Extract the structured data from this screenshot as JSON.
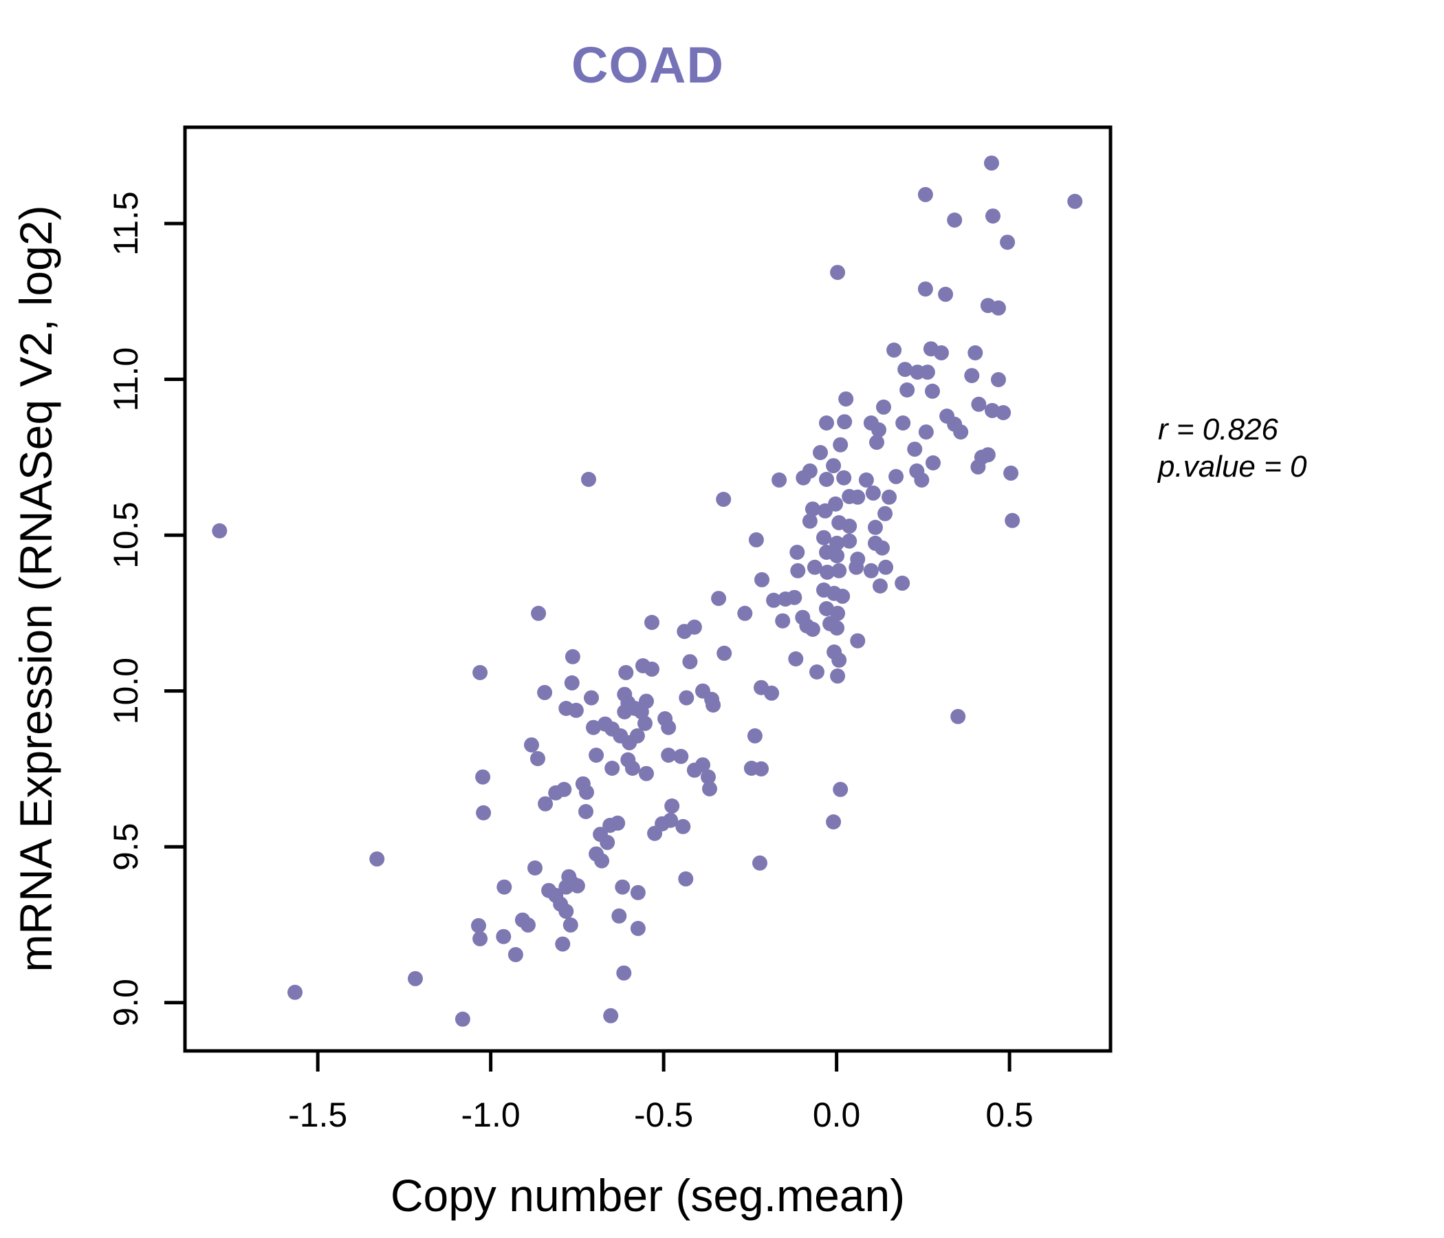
{
  "chart_data": {
    "type": "scatter",
    "title": "COAD",
    "xlabel": "Copy number (seg.mean)",
    "ylabel": "mRNA Expression (RNASeq V2, log2)",
    "xlim": [
      -1.884,
      0.792
    ],
    "ylim": [
      8.845,
      11.809
    ],
    "grid": false,
    "legend": "none",
    "point_color": "#7D78B1",
    "title_color": "#7672B8",
    "axis_color": "#000000",
    "x_tick_values": [
      -1.5,
      -1.0,
      -0.5,
      0.0,
      0.5
    ],
    "x_tick_labels": [
      "-1.5",
      "-1.0",
      "-0.5",
      "0.0",
      "0.5"
    ],
    "y_tick_values": [
      9.0,
      9.5,
      10.0,
      10.5,
      11.0,
      11.5
    ],
    "y_tick_labels": [
      "9.0",
      "9.5",
      "10.0",
      "10.5",
      "11.0",
      "11.5"
    ],
    "annotation": {
      "line1": "r = 0.826",
      "line2": "p.value = 0"
    },
    "points": [
      [
        0.448,
        11.694
      ],
      [
        0.257,
        11.593
      ],
      [
        0.689,
        11.571
      ],
      [
        0.341,
        11.511
      ],
      [
        0.452,
        11.524
      ],
      [
        0.494,
        11.44
      ],
      [
        0.003,
        11.343
      ],
      [
        0.257,
        11.29
      ],
      [
        0.315,
        11.273
      ],
      [
        0.438,
        11.237
      ],
      [
        0.468,
        11.229
      ],
      [
        0.166,
        11.094
      ],
      [
        0.273,
        11.098
      ],
      [
        0.303,
        11.085
      ],
      [
        0.401,
        11.085
      ],
      [
        0.198,
        11.032
      ],
      [
        0.234,
        11.023
      ],
      [
        0.263,
        11.023
      ],
      [
        0.391,
        11.012
      ],
      [
        0.468,
        10.999
      ],
      [
        0.204,
        10.966
      ],
      [
        0.277,
        10.962
      ],
      [
        0.027,
        10.937
      ],
      [
        0.411,
        10.92
      ],
      [
        0.45,
        10.9
      ],
      [
        0.482,
        10.893
      ],
      [
        0.136,
        10.911
      ],
      [
        -0.029,
        10.86
      ],
      [
        0.023,
        10.864
      ],
      [
        0.1,
        10.86
      ],
      [
        0.122,
        10.838
      ],
      [
        0.192,
        10.86
      ],
      [
        0.319,
        10.882
      ],
      [
        0.341,
        10.856
      ],
      [
        0.259,
        10.831
      ],
      [
        0.359,
        10.831
      ],
      [
        -0.047,
        10.765
      ],
      [
        0.011,
        10.79
      ],
      [
        0.116,
        10.798
      ],
      [
        0.226,
        10.776
      ],
      [
        0.279,
        10.732
      ],
      [
        0.42,
        10.75
      ],
      [
        0.409,
        10.719
      ],
      [
        0.438,
        10.758
      ],
      [
        0.504,
        10.699
      ],
      [
        -0.077,
        10.706
      ],
      [
        -0.009,
        10.723
      ],
      [
        -0.029,
        10.679
      ],
      [
        0.021,
        10.684
      ],
      [
        0.086,
        10.677
      ],
      [
        0.172,
        10.688
      ],
      [
        0.232,
        10.706
      ],
      [
        0.246,
        10.677
      ],
      [
        0.106,
        10.635
      ],
      [
        0.037,
        10.624
      ],
      [
        0.061,
        10.622
      ],
      [
        0.152,
        10.622
      ],
      [
        -0.003,
        10.6
      ],
      [
        -0.069,
        10.584
      ],
      [
        -0.033,
        10.578
      ],
      [
        0.14,
        10.569
      ],
      [
        0.508,
        10.547
      ],
      [
        0.007,
        10.54
      ],
      [
        0.037,
        10.529
      ],
      [
        0.112,
        10.525
      ],
      [
        -0.077,
        10.545
      ],
      [
        -0.037,
        10.492
      ],
      [
        0.001,
        10.474
      ],
      [
        0.037,
        10.481
      ],
      [
        0.112,
        10.474
      ],
      [
        0.132,
        10.459
      ],
      [
        -0.029,
        10.445
      ],
      [
        0.001,
        10.434
      ],
      [
        0.061,
        10.423
      ],
      [
        -0.063,
        10.397
      ],
      [
        -0.027,
        10.381
      ],
      [
        0.007,
        10.386
      ],
      [
        0.057,
        10.397
      ],
      [
        0.1,
        10.386
      ],
      [
        0.142,
        10.397
      ],
      [
        0.126,
        10.337
      ],
      [
        0.19,
        10.346
      ],
      [
        -0.037,
        10.324
      ],
      [
        -0.007,
        10.313
      ],
      [
        0.017,
        10.304
      ],
      [
        -0.029,
        10.264
      ],
      [
        0.003,
        10.249
      ],
      [
        -0.019,
        10.216
      ],
      [
        -0.069,
        10.198
      ],
      [
        0.001,
        10.202
      ],
      [
        0.061,
        10.161
      ],
      [
        -0.007,
        10.125
      ],
      [
        0.007,
        10.099
      ],
      [
        -0.057,
        10.061
      ],
      [
        0.003,
        10.048
      ],
      [
        0.351,
        9.918
      ],
      [
        0.011,
        9.684
      ],
      [
        -0.009,
        9.58
      ],
      [
        -0.717,
        10.679
      ],
      [
        -0.327,
        10.615
      ],
      [
        -0.166,
        10.677
      ],
      [
        -0.096,
        10.684
      ],
      [
        -0.232,
        10.485
      ],
      [
        -0.114,
        10.445
      ],
      [
        -0.112,
        10.386
      ],
      [
        -0.216,
        10.357
      ],
      [
        -0.341,
        10.297
      ],
      [
        -0.265,
        10.249
      ],
      [
        -0.182,
        10.291
      ],
      [
        -0.148,
        10.295
      ],
      [
        -0.122,
        10.3
      ],
      [
        -0.156,
        10.225
      ],
      [
        -0.098,
        10.236
      ],
      [
        -0.086,
        10.209
      ],
      [
        -0.862,
        10.249
      ],
      [
        -0.534,
        10.22
      ],
      [
        -0.44,
        10.191
      ],
      [
        -0.411,
        10.205
      ],
      [
        -0.763,
        10.11
      ],
      [
        -0.325,
        10.121
      ],
      [
        -0.424,
        10.094
      ],
      [
        -0.118,
        10.103
      ],
      [
        -0.609,
        10.059
      ],
      [
        -0.56,
        10.081
      ],
      [
        -0.534,
        10.07
      ],
      [
        -0.765,
        10.026
      ],
      [
        -0.844,
        9.995
      ],
      [
        -0.709,
        9.978
      ],
      [
        -0.613,
        9.989
      ],
      [
        -0.603,
        9.962
      ],
      [
        -0.55,
        9.967
      ],
      [
        -0.434,
        9.978
      ],
      [
        -0.387,
        10.0
      ],
      [
        -0.361,
        9.973
      ],
      [
        -0.357,
        9.955
      ],
      [
        -0.218,
        10.011
      ],
      [
        -0.188,
        9.993
      ],
      [
        -0.782,
        9.944
      ],
      [
        -0.753,
        9.938
      ],
      [
        -0.669,
        9.894
      ],
      [
        -0.649,
        9.878
      ],
      [
        -0.625,
        9.856
      ],
      [
        -0.613,
        9.933
      ],
      [
        -0.583,
        9.944
      ],
      [
        -0.564,
        9.933
      ],
      [
        -0.554,
        9.896
      ],
      [
        -0.496,
        9.911
      ],
      [
        -0.486,
        9.883
      ],
      [
        -0.236,
        9.856
      ],
      [
        -0.882,
        9.827
      ],
      [
        -0.703,
        9.883
      ],
      [
        -0.599,
        9.834
      ],
      [
        -0.576,
        9.856
      ],
      [
        -0.864,
        9.783
      ],
      [
        -0.695,
        9.794
      ],
      [
        -0.603,
        9.779
      ],
      [
        -0.649,
        9.752
      ],
      [
        -0.59,
        9.752
      ],
      [
        -0.55,
        9.735
      ],
      [
        -0.486,
        9.794
      ],
      [
        -0.45,
        9.79
      ],
      [
        -0.411,
        9.746
      ],
      [
        -0.387,
        9.763
      ],
      [
        -0.371,
        9.724
      ],
      [
        -0.367,
        9.686
      ],
      [
        -0.246,
        9.752
      ],
      [
        -0.218,
        9.75
      ],
      [
        -0.812,
        9.673
      ],
      [
        -0.788,
        9.684
      ],
      [
        -0.842,
        9.638
      ],
      [
        -0.733,
        9.702
      ],
      [
        -0.723,
        9.675
      ],
      [
        -0.725,
        9.613
      ],
      [
        -0.476,
        9.631
      ],
      [
        -0.504,
        9.574
      ],
      [
        -0.48,
        9.585
      ],
      [
        -0.444,
        9.565
      ],
      [
        -0.526,
        9.543
      ],
      [
        -0.655,
        9.569
      ],
      [
        -0.633,
        9.576
      ],
      [
        -0.683,
        9.54
      ],
      [
        -0.663,
        9.514
      ],
      [
        -0.695,
        9.477
      ],
      [
        -0.679,
        9.455
      ],
      [
        -0.872,
        9.432
      ],
      [
        -0.961,
        9.371
      ],
      [
        -0.774,
        9.404
      ],
      [
        -0.782,
        9.371
      ],
      [
        -0.763,
        9.382
      ],
      [
        -0.832,
        9.36
      ],
      [
        -0.812,
        9.344
      ],
      [
        -0.749,
        9.375
      ],
      [
        -0.619,
        9.371
      ],
      [
        -0.574,
        9.353
      ],
      [
        -0.222,
        9.448
      ],
      [
        -0.436,
        9.397
      ],
      [
        -0.629,
        9.278
      ],
      [
        -0.574,
        9.238
      ],
      [
        -0.798,
        9.316
      ],
      [
        -0.782,
        9.293
      ],
      [
        -0.908,
        9.265
      ],
      [
        -0.892,
        9.249
      ],
      [
        -0.963,
        9.212
      ],
      [
        -0.928,
        9.154
      ],
      [
        -0.792,
        9.188
      ],
      [
        -0.769,
        9.249
      ],
      [
        -0.615,
        9.095
      ],
      [
        -0.653,
        8.958
      ],
      [
        -1.081,
        8.947
      ],
      [
        -1.784,
        10.514
      ],
      [
        -1.031,
        10.059
      ],
      [
        -1.023,
        9.724
      ],
      [
        -1.021,
        9.609
      ],
      [
        -1.329,
        9.461
      ],
      [
        -1.035,
        9.247
      ],
      [
        -1.031,
        9.205
      ],
      [
        -1.218,
        9.077
      ],
      [
        -1.566,
        9.033
      ]
    ]
  }
}
